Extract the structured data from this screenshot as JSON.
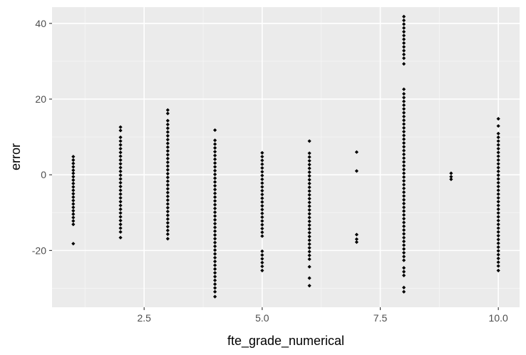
{
  "chart_data": {
    "type": "scatter",
    "title": "",
    "xlabel": "fte_grade_numerical",
    "ylabel": "error",
    "xlim": [
      0.55,
      10.45
    ],
    "ylim": [
      -35,
      44.3
    ],
    "x_ticks": [
      2.5,
      5.0,
      7.5,
      10.0
    ],
    "x_tick_labels": [
      "2.5",
      "5.0",
      "7.5",
      "10.0"
    ],
    "y_ticks": [
      -20,
      0,
      20,
      40
    ],
    "y_tick_labels": [
      "-20",
      "0",
      "20",
      "40"
    ],
    "grid": true,
    "legend": "none",
    "colors": {
      "panel": "#ebebeb",
      "grid_major": "#ffffff",
      "grid_minor": "#f5f5f5",
      "point": "#000000",
      "tick": "#4d4d4d"
    },
    "point_groups": [
      {
        "x": 1,
        "y_values": [
          4.8,
          3.9,
          3.0,
          2.1,
          1.2,
          0.4,
          -0.5,
          -1.4,
          -2.3,
          -3.2,
          -4.1,
          -5.0,
          -5.9,
          -6.8,
          -7.7,
          -8.6,
          -9.5,
          -10.4,
          -11.3,
          -12.2,
          -13.1,
          -18.2
        ]
      },
      {
        "x": 2,
        "y_values": [
          12.6,
          11.7,
          9.9,
          8.9,
          7.9,
          6.9,
          5.9,
          4.9,
          3.9,
          2.9,
          1.9,
          0.9,
          -0.1,
          -1.1,
          -2.1,
          -3.1,
          -4.1,
          -5.1,
          -6.1,
          -7.1,
          -8.1,
          -9.1,
          -10.1,
          -11.1,
          -12.1,
          -13.1,
          -14.1,
          -15.1,
          -16.6
        ]
      },
      {
        "x": 3,
        "y_values": [
          17.1,
          16.2,
          14.3,
          13.3,
          12.3,
          11.3,
          10.3,
          9.3,
          8.3,
          7.3,
          6.3,
          5.3,
          4.3,
          3.3,
          2.3,
          1.3,
          0.3,
          -0.7,
          -1.7,
          -2.7,
          -3.7,
          -4.7,
          -5.7,
          -6.7,
          -7.7,
          -8.7,
          -9.7,
          -10.7,
          -11.7,
          -12.7,
          -13.7,
          -14.7,
          -15.7,
          -16.9
        ]
      },
      {
        "x": 4,
        "y_values": [
          11.8,
          9.1,
          8.1,
          7.1,
          6.1,
          5.1,
          4.1,
          3.1,
          2.1,
          1.1,
          0.1,
          -0.9,
          -1.9,
          -2.9,
          -3.9,
          -4.9,
          -5.9,
          -6.9,
          -7.9,
          -8.9,
          -9.9,
          -10.9,
          -11.9,
          -12.9,
          -13.9,
          -14.9,
          -15.9,
          -16.9,
          -17.9,
          -18.9,
          -19.9,
          -20.9,
          -21.9,
          -22.9,
          -23.9,
          -24.9,
          -25.9,
          -26.9,
          -27.9,
          -28.9,
          -29.9,
          -30.9,
          -32.2
        ]
      },
      {
        "x": 5,
        "y_values": [
          5.8,
          4.8,
          3.8,
          2.8,
          1.8,
          0.8,
          -0.2,
          -1.2,
          -2.2,
          -3.2,
          -4.2,
          -5.2,
          -6.2,
          -7.2,
          -8.2,
          -9.2,
          -10.2,
          -11.2,
          -12.2,
          -13.2,
          -14.2,
          -15.2,
          -16.2,
          -20.2,
          -21.2,
          -22.2,
          -23.2,
          -24.2,
          -25.3
        ]
      },
      {
        "x": 6,
        "y_values": [
          8.9,
          5.7,
          4.7,
          3.7,
          2.7,
          1.7,
          0.7,
          -0.3,
          -1.3,
          -2.3,
          -3.3,
          -4.3,
          -5.3,
          -6.3,
          -7.3,
          -8.3,
          -9.3,
          -10.3,
          -11.3,
          -12.3,
          -13.3,
          -14.3,
          -15.3,
          -16.3,
          -17.3,
          -18.3,
          -19.3,
          -20.3,
          -21.3,
          -22.3,
          -24.3,
          -27.3,
          -29.3
        ]
      },
      {
        "x": 7,
        "y_values": [
          6.0,
          1.0,
          -15.8,
          -17.0,
          -17.8
        ]
      },
      {
        "x": 8,
        "y_values": [
          41.8,
          40.8,
          39.8,
          38.8,
          37.8,
          36.8,
          35.8,
          34.8,
          33.8,
          32.8,
          31.8,
          30.8,
          29.3,
          22.6,
          21.4,
          20.4,
          19.4,
          18.4,
          17.4,
          16.4,
          15.4,
          14.4,
          13.4,
          12.4,
          11.4,
          10.4,
          9.4,
          8.4,
          7.4,
          6.4,
          5.4,
          4.4,
          3.4,
          2.4,
          1.4,
          0.4,
          -0.6,
          -1.6,
          -2.6,
          -3.6,
          -4.6,
          -5.6,
          -6.6,
          -7.6,
          -8.6,
          -9.6,
          -10.6,
          -11.6,
          -12.6,
          -13.6,
          -14.6,
          -15.6,
          -16.6,
          -17.6,
          -18.6,
          -19.6,
          -20.6,
          -21.6,
          -22.6,
          -24.6,
          -25.6,
          -26.6,
          -29.8,
          -30.9
        ]
      },
      {
        "x": 9,
        "y_values": [
          0.4,
          -0.5,
          -1.2
        ]
      },
      {
        "x": 10,
        "y_values": [
          14.8,
          12.9,
          10.9,
          9.9,
          8.9,
          7.9,
          6.9,
          5.9,
          4.9,
          3.9,
          2.9,
          1.9,
          0.9,
          -0.1,
          -1.1,
          -2.1,
          -3.1,
          -4.1,
          -5.1,
          -6.1,
          -7.1,
          -8.1,
          -9.1,
          -10.1,
          -11.1,
          -12.1,
          -13.1,
          -14.1,
          -15.1,
          -16.1,
          -17.1,
          -18.1,
          -19.1,
          -20.1,
          -21.1,
          -22.1,
          -23.1,
          -24.1,
          -25.3
        ]
      }
    ]
  }
}
